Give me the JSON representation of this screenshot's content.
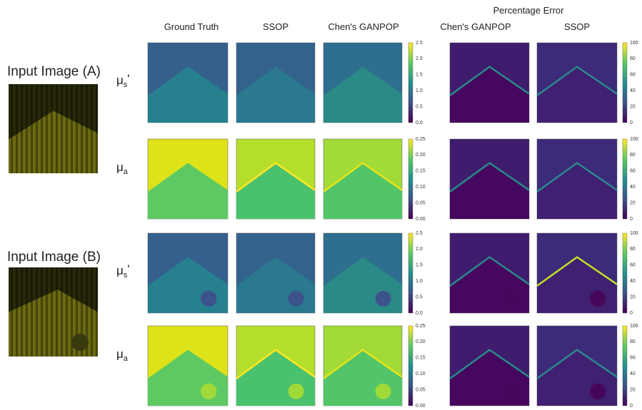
{
  "header": {
    "title": "Percentage Error"
  },
  "columns": [
    "Ground Truth",
    "SSOP",
    "Chen's GANPOP",
    "Chen's GANPOP",
    "SSOP"
  ],
  "inputs": [
    "Input Image (A)",
    "Input Image (B)"
  ],
  "rows": [
    {
      "symbol": "μ",
      "subscript": "s",
      "prime": "'",
      "ticks": [
        "2.5",
        "2.0",
        "1.5",
        "1.0",
        "0.5",
        "0.0"
      ],
      "error_ticks": [
        "100",
        "80",
        "60",
        "40",
        "20",
        "0"
      ]
    },
    {
      "symbol": "μ",
      "subscript": "a",
      "ticks": [
        "0.25",
        "0.20",
        "0.15",
        "0.10",
        "0.05",
        "0.00"
      ],
      "error_ticks": [
        "100",
        "80",
        "60",
        "40",
        "20",
        "0"
      ]
    },
    {
      "symbol": "μ",
      "subscript": "s",
      "prime": "'",
      "ticks": [
        "2.5",
        "2.0",
        "1.5",
        "1.0",
        "0.5",
        "0.0"
      ],
      "error_ticks": [
        "100",
        "80",
        "60",
        "40",
        "20",
        "0"
      ]
    },
    {
      "symbol": "μ",
      "subscript": "a",
      "ticks": [
        "0.25",
        "0.20",
        "0.15",
        "0.10",
        "0.05",
        "0.00"
      ],
      "error_ticks": [
        "100",
        "80",
        "60",
        "40",
        "20",
        "0"
      ]
    }
  ]
}
